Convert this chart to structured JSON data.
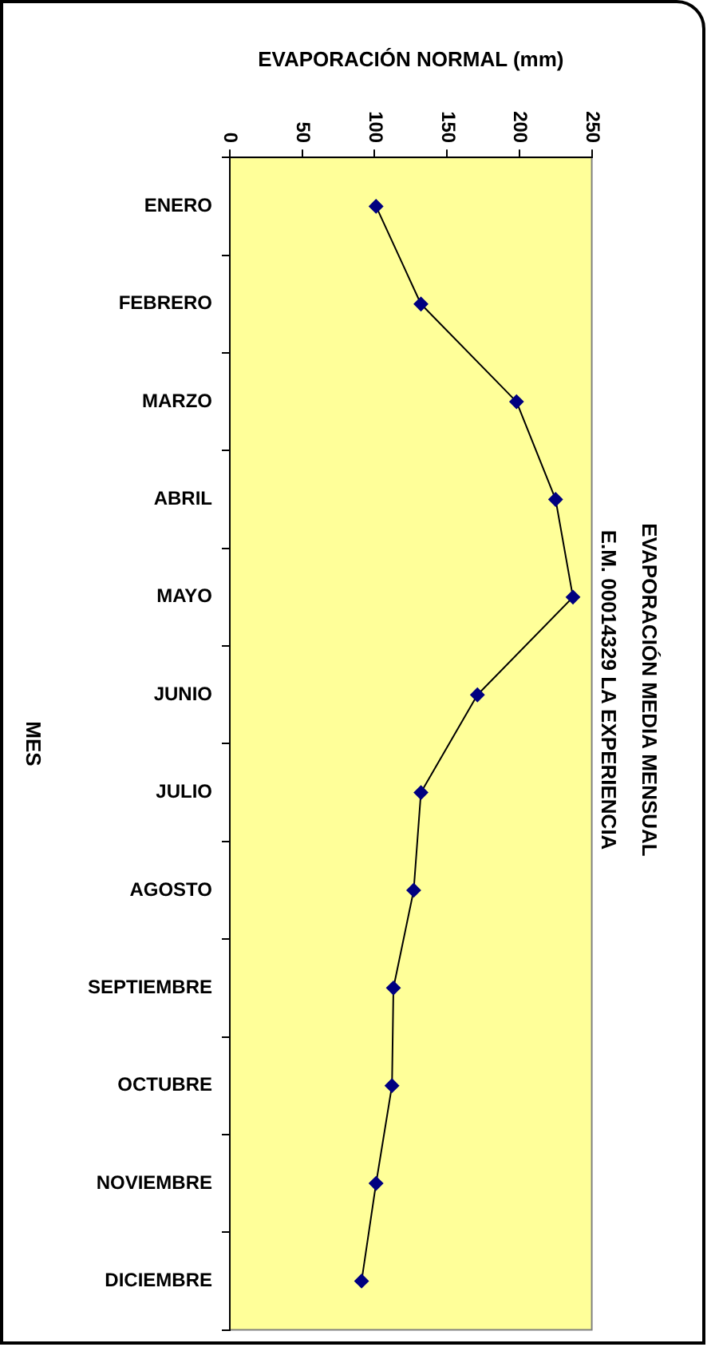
{
  "chart_data": {
    "type": "line",
    "orientation": "horizontal",
    "title": "EVAPORACIÓN MEDIA MENSUAL",
    "subtitle": "E.M. 00014329 LA EXPERIENCIA",
    "xlabel": "EVAPORACIÓN NORMAL (mm)",
    "ylabel": "MES",
    "categories": [
      "ENERO",
      "FEBRERO",
      "MARZO",
      "ABRIL",
      "MAYO",
      "JUNIO",
      "JULIO",
      "AGOSTO",
      "SEPTIEMBRE",
      "OCTUBRE",
      "NOVIEMBRE",
      "DICIEMBRE"
    ],
    "series": [
      {
        "color": "#000080",
        "values": [
          101,
          132,
          198,
          225,
          237,
          171,
          132,
          127,
          113,
          112,
          101,
          91
        ]
      }
    ],
    "xlim": [
      0,
      250
    ],
    "xticks": [
      0,
      50,
      100,
      150,
      200,
      250
    ],
    "grid": false,
    "legend": false,
    "marker": "diamond",
    "line_style": "solid"
  }
}
